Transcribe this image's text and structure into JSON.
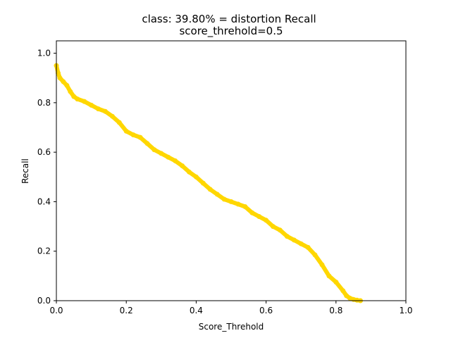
{
  "chart_data": {
    "type": "line",
    "title": "class: 39.80% = distortion Recall",
    "subtitle": "score_threhold=0.5",
    "xlabel": "Score_Threhold",
    "ylabel": "Recall",
    "xlim": [
      0.0,
      1.0
    ],
    "ylim": [
      0.0,
      1.05
    ],
    "xticks": [
      "0.0",
      "0.2",
      "0.4",
      "0.6",
      "0.8",
      "1.0"
    ],
    "yticks": [
      "0.0",
      "0.2",
      "0.4",
      "0.6",
      "0.8",
      "1.0"
    ],
    "grid": false,
    "series": [
      {
        "color": "#FFD700",
        "marker": "circle",
        "x": [
          0.0,
          0.005,
          0.01,
          0.02,
          0.03,
          0.04,
          0.05,
          0.06,
          0.08,
          0.1,
          0.12,
          0.14,
          0.16,
          0.18,
          0.2,
          0.22,
          0.24,
          0.26,
          0.28,
          0.3,
          0.32,
          0.34,
          0.36,
          0.38,
          0.4,
          0.42,
          0.44,
          0.46,
          0.48,
          0.5,
          0.52,
          0.54,
          0.56,
          0.58,
          0.6,
          0.62,
          0.64,
          0.66,
          0.68,
          0.7,
          0.72,
          0.74,
          0.76,
          0.78,
          0.8,
          0.82,
          0.83,
          0.84,
          0.85,
          0.86,
          0.87
        ],
        "y": [
          0.95,
          0.92,
          0.9,
          0.885,
          0.87,
          0.845,
          0.825,
          0.815,
          0.805,
          0.79,
          0.775,
          0.765,
          0.745,
          0.72,
          0.685,
          0.67,
          0.66,
          0.635,
          0.61,
          0.595,
          0.58,
          0.565,
          0.545,
          0.52,
          0.5,
          0.475,
          0.45,
          0.43,
          0.41,
          0.4,
          0.39,
          0.38,
          0.355,
          0.34,
          0.325,
          0.3,
          0.285,
          0.26,
          0.245,
          0.23,
          0.215,
          0.185,
          0.145,
          0.1,
          0.075,
          0.04,
          0.02,
          0.01,
          0.005,
          0.002,
          0.0
        ]
      }
    ]
  }
}
